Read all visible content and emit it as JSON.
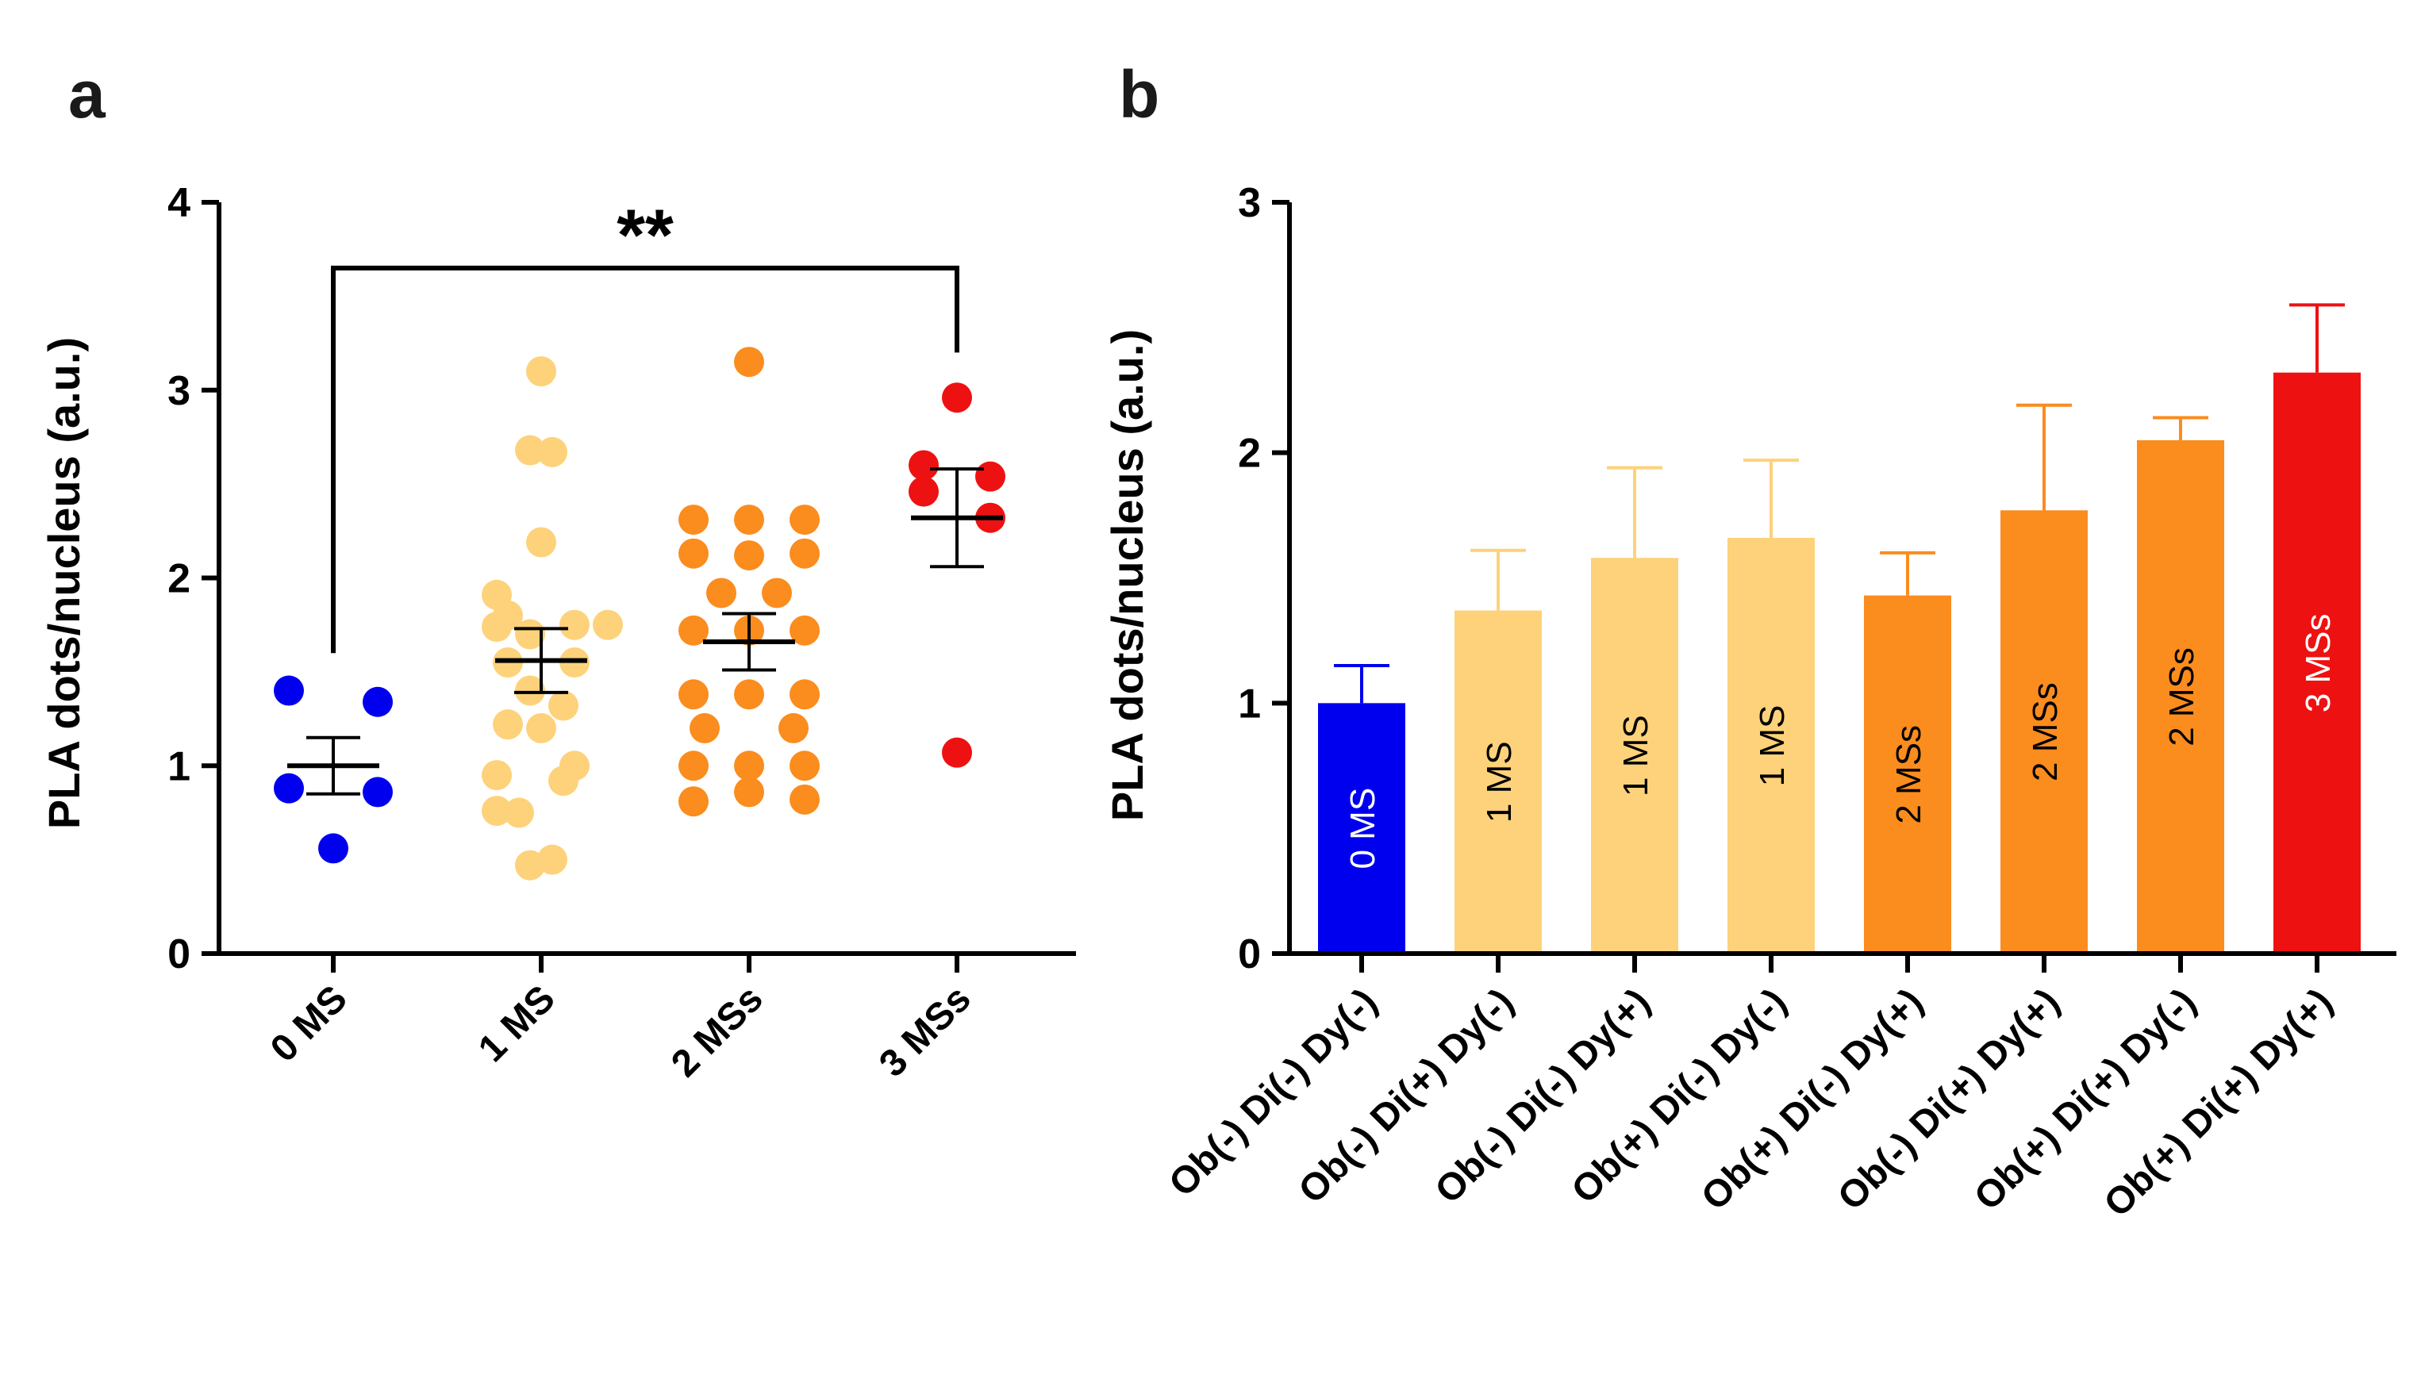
{
  "chart_data": [
    {
      "type": "scatter",
      "panel": "a",
      "ylabel": "PLA dots/nucleus (a.u.)",
      "ylim": [
        0,
        4
      ],
      "yticks": [
        0,
        1,
        2,
        3,
        4
      ],
      "categories": [
        "0 MS",
        "1 MS",
        "2 MSs",
        "3 MSs"
      ],
      "colors": [
        "#0000ee",
        "#fdd27a",
        "#fb8c1e",
        "#ee1111"
      ],
      "significance": {
        "label": "**",
        "from": "0 MS",
        "to": "3 MSs"
      },
      "groups": [
        {
          "name": "0 MS",
          "mean": 1.0,
          "sem": 0.15,
          "points": [
            [
              -0.4,
              1.4
            ],
            [
              0.4,
              1.34
            ],
            [
              -0.4,
              0.88
            ],
            [
              0.4,
              0.86
            ],
            [
              0.0,
              0.56
            ]
          ]
        },
        {
          "name": "1 MS",
          "mean": 1.56,
          "sem": 0.17,
          "points": [
            [
              0.0,
              3.1
            ],
            [
              -0.1,
              2.68
            ],
            [
              0.1,
              2.67
            ],
            [
              0.0,
              2.19
            ],
            [
              -0.4,
              1.91
            ],
            [
              -0.3,
              1.8
            ],
            [
              -0.4,
              1.74
            ],
            [
              0.3,
              1.75
            ],
            [
              0.6,
              1.75
            ],
            [
              -0.1,
              1.7
            ],
            [
              -0.3,
              1.55
            ],
            [
              0.3,
              1.55
            ],
            [
              -0.1,
              1.4
            ],
            [
              0.2,
              1.32
            ],
            [
              -0.3,
              1.22
            ],
            [
              0.0,
              1.2
            ],
            [
              0.3,
              1.0
            ],
            [
              -0.4,
              0.95
            ],
            [
              0.2,
              0.92
            ],
            [
              -0.4,
              0.76
            ],
            [
              -0.2,
              0.75
            ],
            [
              0.1,
              0.5
            ],
            [
              -0.1,
              0.47
            ]
          ]
        },
        {
          "name": "2 MSs",
          "mean": 1.66,
          "sem": 0.15,
          "points": [
            [
              0.0,
              3.15
            ],
            [
              -0.5,
              2.31
            ],
            [
              0.0,
              2.31
            ],
            [
              0.5,
              2.31
            ],
            [
              -0.5,
              2.13
            ],
            [
              0.0,
              2.12
            ],
            [
              0.5,
              2.13
            ],
            [
              -0.25,
              1.92
            ],
            [
              0.25,
              1.92
            ],
            [
              -0.5,
              1.72
            ],
            [
              0.0,
              1.72
            ],
            [
              0.5,
              1.72
            ],
            [
              -0.5,
              1.38
            ],
            [
              0.0,
              1.38
            ],
            [
              0.5,
              1.38
            ],
            [
              -0.4,
              1.2
            ],
            [
              0.4,
              1.2
            ],
            [
              -0.5,
              1.0
            ],
            [
              0.0,
              1.0
            ],
            [
              0.5,
              1.0
            ],
            [
              -0.5,
              0.81
            ],
            [
              0.0,
              0.86
            ],
            [
              0.5,
              0.82
            ]
          ]
        },
        {
          "name": "3 MSs",
          "mean": 2.32,
          "sem": 0.26,
          "points": [
            [
              0.0,
              2.96
            ],
            [
              -0.3,
              2.6
            ],
            [
              0.3,
              2.54
            ],
            [
              -0.3,
              2.46
            ],
            [
              0.3,
              2.32
            ],
            [
              0.0,
              1.07
            ]
          ]
        }
      ]
    },
    {
      "type": "bar",
      "panel": "b",
      "ylabel": "PLA dots/nucleus (a.u.)",
      "ylim": [
        0,
        3
      ],
      "yticks": [
        0,
        1,
        2,
        3
      ],
      "categories": [
        "Ob(-) Di(-) Dy(-)",
        "Ob(-) Di(+) Dy(-)",
        "Ob(-) Di(-) Dy(+)",
        "Ob(+) Di(-) Dy(-)",
        "Ob(+) Di(-) Dy(+)",
        "Ob(-) Di(+) Dy(+)",
        "Ob(+) Di(+) Dy(-)",
        "Ob(+) Di(+) Dy(+)"
      ],
      "values": [
        1.0,
        1.37,
        1.58,
        1.66,
        1.43,
        1.77,
        2.05,
        2.32
      ],
      "errors": [
        0.15,
        0.24,
        0.36,
        0.31,
        0.17,
        0.42,
        0.09,
        0.27
      ],
      "bar_labels": [
        "0 MS",
        "1 MS",
        "1  MS",
        "1 MS",
        "2 MSs",
        "2 MSs",
        "2 MSs",
        "3 MSs"
      ],
      "bar_label_colors": [
        "#ffffff",
        "#000000",
        "#000000",
        "#000000",
        "#000000",
        "#000000",
        "#000000",
        "#ffffff"
      ],
      "colors": [
        "#0000ee",
        "#fdd27a",
        "#fdd27a",
        "#fdd27a",
        "#fb8c1e",
        "#fb8c1e",
        "#fb8c1e",
        "#ee1111"
      ]
    }
  ]
}
